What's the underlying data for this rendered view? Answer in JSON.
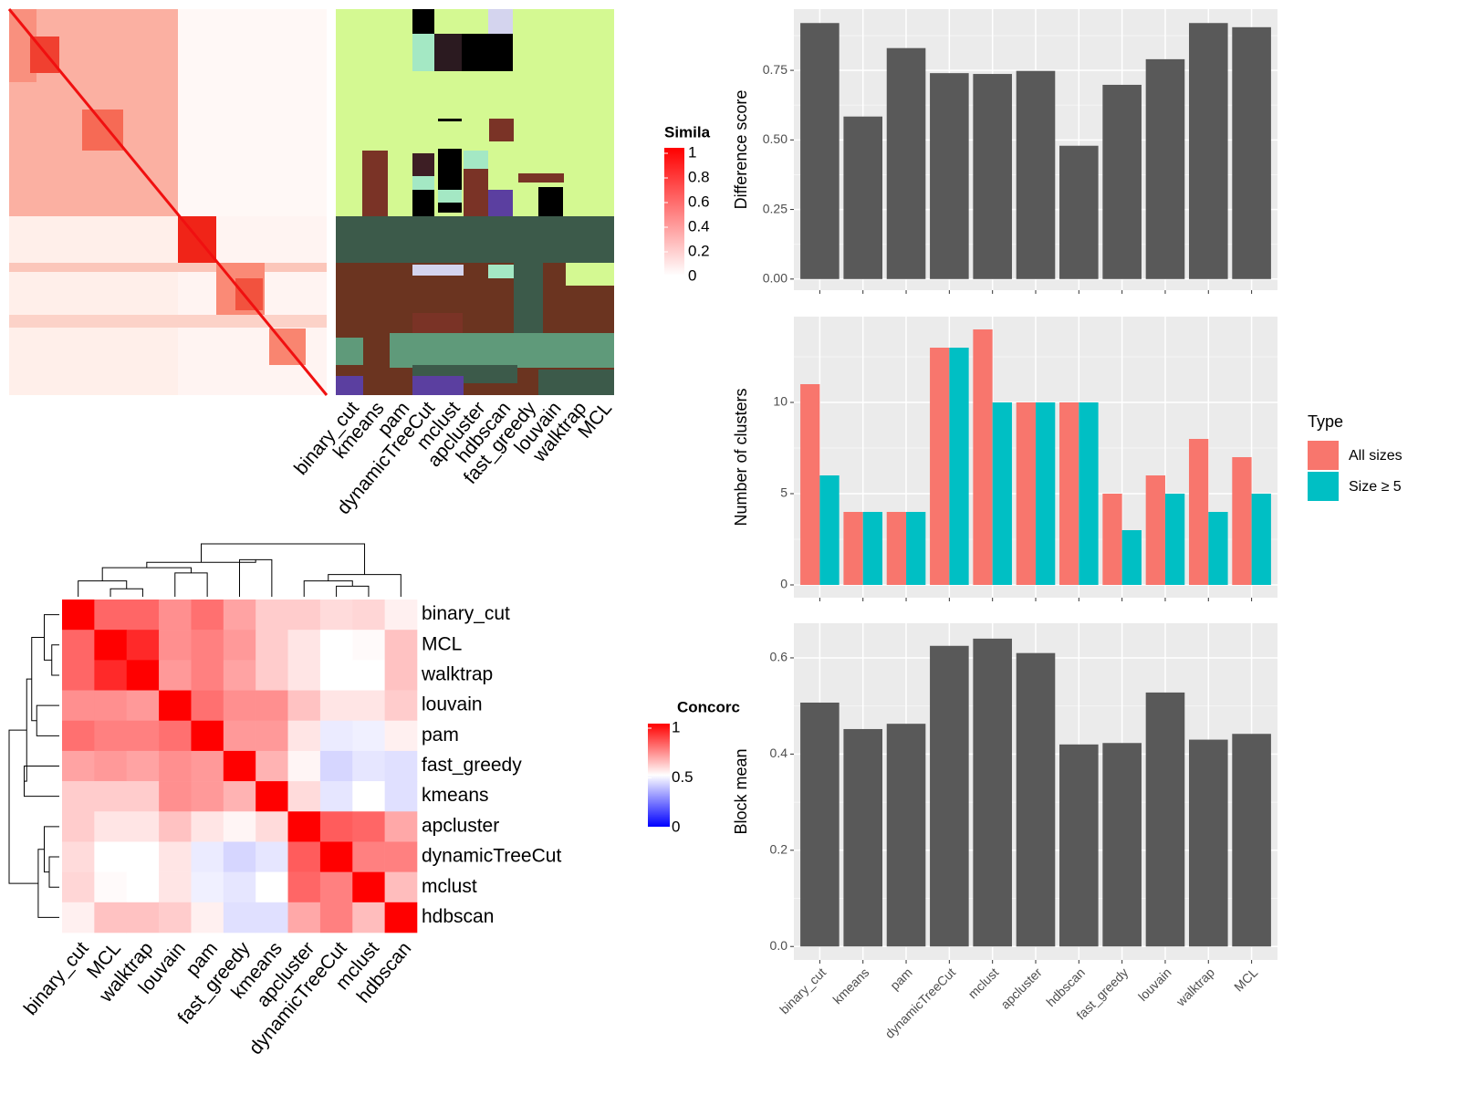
{
  "chart_data": [
    {
      "type": "cluster-heatmap",
      "columns": [
        "binary_cut",
        "kmeans",
        "pam",
        "dynamicTreeCut",
        "mclust",
        "apcluster",
        "hdbscan",
        "fast_greedy",
        "louvain",
        "walktrap",
        "MCL"
      ],
      "legend_title": "Simila",
      "legend_ticks": [
        0,
        0.2,
        0.4,
        0.6,
        0.8,
        1
      ],
      "colors": [
        "#FFFFFF",
        "#FF0000"
      ]
    },
    {
      "type": "heatmap",
      "rows": [
        "binary_cut",
        "MCL",
        "walktrap",
        "louvain",
        "pam",
        "fast_greedy",
        "kmeans",
        "apcluster",
        "dynamicTreeCut",
        "mclust",
        "hdbscan"
      ],
      "columns": [
        "binary_cut",
        "MCL",
        "walktrap",
        "louvain",
        "pam",
        "fast_greedy",
        "kmeans",
        "apcluster",
        "dynamicTreeCut",
        "mclust",
        "hdbscan"
      ],
      "values": [
        [
          1,
          0.8,
          0.8,
          0.72,
          0.78,
          0.68,
          0.6,
          0.6,
          0.57,
          0.58,
          0.53
        ],
        [
          0.8,
          1,
          0.92,
          0.72,
          0.75,
          0.7,
          0.6,
          0.55,
          0.5,
          0.51,
          0.62
        ],
        [
          0.8,
          0.92,
          1,
          0.7,
          0.75,
          0.68,
          0.6,
          0.55,
          0.5,
          0.5,
          0.62
        ],
        [
          0.72,
          0.72,
          0.7,
          1,
          0.78,
          0.72,
          0.72,
          0.62,
          0.55,
          0.55,
          0.6
        ],
        [
          0.78,
          0.75,
          0.75,
          0.78,
          1,
          0.7,
          0.7,
          0.55,
          0.46,
          0.47,
          0.53
        ],
        [
          0.68,
          0.7,
          0.68,
          0.72,
          0.7,
          1,
          0.65,
          0.52,
          0.42,
          0.45,
          0.44
        ],
        [
          0.6,
          0.6,
          0.6,
          0.72,
          0.7,
          0.65,
          1,
          0.57,
          0.45,
          0.5,
          0.44
        ],
        [
          0.6,
          0.55,
          0.55,
          0.62,
          0.55,
          0.52,
          0.57,
          1,
          0.82,
          0.8,
          0.67
        ],
        [
          0.57,
          0.5,
          0.5,
          0.55,
          0.46,
          0.42,
          0.45,
          0.82,
          1,
          0.75,
          0.75
        ],
        [
          0.58,
          0.51,
          0.5,
          0.55,
          0.47,
          0.45,
          0.5,
          0.8,
          0.75,
          1,
          0.63
        ],
        [
          0.53,
          0.62,
          0.62,
          0.6,
          0.53,
          0.44,
          0.44,
          0.67,
          0.75,
          0.63,
          1
        ]
      ],
      "legend_title": "Concorc",
      "legend_ticks": [
        0,
        0.5,
        1
      ],
      "colors": [
        "#0000FF",
        "#FFFFFF",
        "#FF0000"
      ]
    },
    {
      "type": "bar",
      "ylabel": "Difference score",
      "values": [
        0.92,
        0.584,
        0.83,
        0.74,
        0.737,
        0.748,
        0.479,
        0.698,
        0.79,
        0.92,
        0.905
      ],
      "color": "#595959",
      "ylim": [
        -0.04,
        0.97
      ],
      "yticks": [
        {
          "value": 0,
          "label": "0.00"
        },
        0.25,
        {
          "value": 0.5,
          "label": "0.50"
        },
        0.75
      ],
      "grid": true
    },
    {
      "type": "grouped-bar",
      "ylabel": "Number of clusters",
      "legend_title": "Type",
      "series": [
        {
          "name": "All sizes",
          "color": "#F8766D",
          "values": [
            11,
            4,
            4,
            13,
            14,
            10,
            10,
            5,
            6,
            8,
            7
          ]
        },
        {
          "name": "Size ≥ 5",
          "color": "#00BFC4",
          "values": [
            6,
            4,
            4,
            13,
            10,
            10,
            10,
            3,
            5,
            4,
            5
          ]
        }
      ],
      "ylim": [
        -0.7,
        14.7
      ],
      "yticks": [
        0,
        5,
        10
      ],
      "grid": true
    },
    {
      "type": "bar",
      "ylabel": "Block mean",
      "categories": [
        "binary_cut",
        "kmeans",
        "pam",
        "dynamicTreeCut",
        "mclust",
        "apcluster",
        "hdbscan",
        "fast_greedy",
        "louvain",
        "walktrap",
        "MCL"
      ],
      "values": [
        0.507,
        0.452,
        0.463,
        0.625,
        0.64,
        0.61,
        0.42,
        0.423,
        0.528,
        0.43,
        0.442
      ],
      "color": "#595959",
      "ylim": [
        -0.028,
        0.672
      ],
      "yticks": [
        {
          "value": 0,
          "label": "0.0"
        },
        0.2,
        0.4,
        0.6
      ],
      "grid": true
    }
  ]
}
